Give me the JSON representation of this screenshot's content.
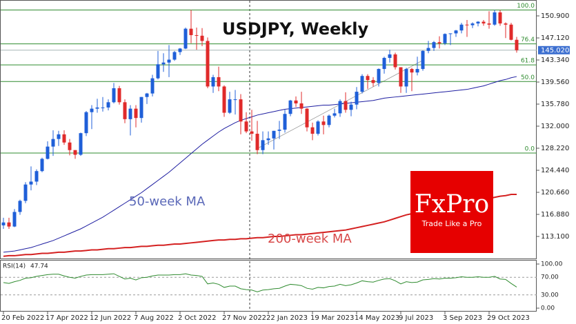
{
  "chart_data": [
    {
      "type": "candlestick",
      "title": "USDJPY, Weekly",
      "categories": [
        "20 Feb 2022",
        null,
        null,
        null,
        null,
        null,
        null,
        null,
        "17 Apr 2022",
        null,
        null,
        null,
        null,
        null,
        null,
        null,
        "12 Jun 2022",
        null,
        null,
        null,
        null,
        null,
        null,
        null,
        "7 Aug 2022",
        null,
        null,
        null,
        null,
        null,
        null,
        null,
        "2 Oct 2022",
        null,
        null,
        null,
        null,
        null,
        null,
        null,
        "27 Nov 2022",
        null,
        null,
        null,
        null,
        null,
        null,
        null,
        "22 Jan 2023",
        null,
        null,
        null,
        null,
        null,
        null,
        null,
        "19 Mar 2023",
        null,
        null,
        null,
        null,
        null,
        null,
        null,
        "14 May 2023",
        null,
        null,
        null,
        null,
        null,
        null,
        null,
        "9 Jul 2023",
        null,
        null,
        null,
        null,
        null,
        null,
        null,
        "3 Sep 2023",
        null,
        null,
        null,
        null,
        null,
        null,
        null,
        "29 Oct 2023",
        null,
        null,
        null,
        null,
        null
      ],
      "open": [
        115.0,
        115.5,
        114.8,
        117.3,
        119.2,
        122.0,
        122.5,
        124.3,
        126.4,
        128.5,
        129.8,
        130.6,
        129.2,
        127.9,
        127.1,
        130.8,
        134.4,
        135.0,
        135.2,
        135.2,
        136.1,
        138.5,
        136.1,
        133.2,
        135.0,
        133.4,
        137.0,
        137.6,
        140.2,
        142.6,
        142.9,
        143.4,
        144.7,
        145.3,
        148.7,
        147.6,
        147.5,
        146.6,
        138.8,
        140.4,
        138.8,
        134.3,
        136.6,
        136.6,
        132.8,
        131.1,
        130.7,
        127.9,
        129.6,
        129.9,
        131.2,
        131.4,
        134.1,
        136.4,
        135.9,
        135.0,
        131.8,
        130.7,
        132.8,
        132.2,
        133.8,
        134.2,
        136.3,
        134.8,
        135.7,
        137.9,
        140.6,
        139.9,
        139.4,
        141.8,
        143.7,
        144.3,
        142.1,
        138.8,
        141.8,
        141.2,
        141.8,
        144.9,
        145.4,
        146.4,
        146.2,
        147.8,
        147.9,
        148.4,
        149.4,
        149.3,
        149.6,
        149.9,
        149.6,
        149.4,
        151.5,
        149.6,
        149.4,
        146.8
      ],
      "high": [
        116.3,
        116.3,
        117.8,
        119.4,
        122.4,
        125.1,
        124.6,
        126.6,
        129.4,
        131.3,
        131.2,
        131.3,
        129.8,
        127.9,
        130.9,
        134.6,
        135.6,
        136.7,
        137.0,
        136.6,
        139.4,
        138.9,
        136.6,
        135.6,
        135.6,
        137.0,
        137.7,
        140.8,
        144.9,
        144.5,
        145.9,
        144.9,
        145.4,
        148.9,
        151.9,
        148.9,
        148.8,
        147.2,
        140.8,
        142.2,
        139.0,
        137.9,
        138.2,
        137.5,
        134.4,
        134.8,
        132.9,
        131.1,
        131.1,
        131.2,
        132.9,
        134.8,
        136.5,
        137.1,
        137.9,
        135.1,
        132.6,
        133.0,
        133.8,
        134.0,
        135.0,
        136.6,
        137.8,
        136.2,
        138.7,
        140.9,
        140.9,
        140.4,
        141.9,
        143.9,
        145.1,
        144.6,
        142.1,
        142.0,
        142.0,
        143.9,
        145.0,
        146.6,
        146.6,
        147.4,
        147.9,
        147.9,
        148.5,
        149.7,
        150.2,
        149.8,
        150.0,
        150.2,
        151.7,
        151.9,
        151.9,
        149.8,
        149.7,
        147.3
      ],
      "low": [
        114.4,
        114.4,
        114.7,
        116.8,
        118.8,
        121.0,
        121.9,
        124.1,
        126.3,
        126.9,
        128.6,
        128.8,
        127.0,
        126.4,
        126.9,
        130.3,
        131.5,
        134.3,
        134.5,
        134.7,
        135.9,
        135.7,
        132.5,
        130.4,
        131.8,
        132.6,
        135.8,
        137.1,
        140.0,
        141.3,
        140.4,
        143.2,
        144.2,
        145.2,
        146.2,
        145.1,
        145.7,
        138.5,
        137.7,
        138.0,
        133.6,
        134.1,
        134.0,
        130.6,
        130.8,
        129.5,
        127.2,
        127.2,
        128.8,
        128.0,
        129.8,
        130.9,
        133.7,
        135.3,
        134.1,
        131.1,
        129.6,
        130.4,
        130.6,
        131.8,
        133.5,
        133.6,
        134.3,
        133.7,
        134.9,
        137.6,
        138.4,
        138.8,
        138.8,
        141.0,
        142.9,
        141.7,
        137.7,
        137.7,
        138.0,
        140.7,
        141.5,
        144.5,
        144.9,
        145.3,
        145.9,
        145.9,
        147.3,
        147.9,
        147.3,
        148.8,
        149.1,
        149.2,
        148.7,
        149.2,
        149.2,
        147.1,
        146.7,
        144.6
      ],
      "close": [
        115.5,
        114.8,
        117.3,
        119.2,
        122.0,
        122.5,
        124.3,
        126.4,
        128.5,
        129.8,
        130.6,
        129.2,
        127.9,
        127.1,
        130.8,
        134.4,
        135.0,
        135.2,
        135.2,
        136.1,
        138.5,
        136.1,
        133.2,
        135.0,
        133.4,
        137.0,
        137.6,
        140.2,
        142.6,
        142.9,
        143.4,
        144.7,
        145.3,
        148.7,
        147.6,
        147.5,
        146.6,
        138.8,
        140.4,
        138.8,
        134.3,
        136.6,
        136.6,
        132.8,
        131.1,
        130.7,
        127.9,
        129.6,
        129.9,
        131.2,
        131.4,
        134.1,
        136.4,
        135.9,
        135.0,
        131.8,
        130.7,
        132.8,
        132.2,
        133.8,
        134.2,
        136.3,
        134.8,
        135.7,
        137.9,
        140.6,
        139.9,
        139.4,
        141.8,
        143.7,
        144.3,
        142.1,
        138.8,
        141.8,
        141.2,
        141.8,
        144.9,
        145.4,
        146.4,
        146.2,
        147.8,
        147.9,
        148.4,
        149.4,
        149.3,
        149.6,
        149.9,
        149.6,
        149.4,
        151.5,
        149.6,
        149.4,
        146.8,
        145.02
      ],
      "up_color": "#1f5fd8",
      "down_color": "#e02a2a",
      "series": [
        {
          "name": "50-week MA",
          "color": "#1c1ca0",
          "text_color": "#5a68b8",
          "values": [
            110.4,
            110.5,
            110.6,
            110.8,
            111.0,
            111.2,
            111.5,
            111.8,
            112.1,
            112.4,
            112.8,
            113.2,
            113.6,
            114.0,
            114.4,
            114.9,
            115.4,
            115.9,
            116.4,
            117.0,
            117.6,
            118.2,
            118.8,
            119.4,
            120.0,
            120.6,
            121.3,
            122.0,
            122.7,
            123.4,
            124.1,
            124.9,
            125.7,
            126.5,
            127.3,
            128.1,
            128.9,
            129.6,
            130.3,
            131.0,
            131.6,
            132.1,
            132.6,
            133.0,
            133.3,
            133.6,
            133.9,
            134.1,
            134.3,
            134.5,
            134.7,
            134.9,
            135.0,
            135.1,
            135.2,
            135.3,
            135.4,
            135.5,
            135.6,
            135.6,
            135.7,
            135.8,
            135.9,
            136.0,
            136.1,
            136.2,
            136.3,
            136.4,
            136.6,
            136.8,
            136.9,
            137.0,
            137.1,
            137.2,
            137.3,
            137.4,
            137.5,
            137.6,
            137.7,
            137.8,
            137.9,
            138.0,
            138.1,
            138.2,
            138.3,
            138.5,
            138.7,
            138.9,
            139.2,
            139.5,
            139.8,
            140.0,
            140.3,
            140.5
          ]
        },
        {
          "name": "200-week MA",
          "color": "#d42020",
          "text_color": "#d84848",
          "values": [
            109.7,
            109.8,
            109.8,
            109.9,
            110.0,
            110.0,
            110.1,
            110.2,
            110.2,
            110.3,
            110.4,
            110.4,
            110.5,
            110.6,
            110.6,
            110.7,
            110.8,
            110.8,
            110.9,
            111.0,
            111.0,
            111.1,
            111.2,
            111.2,
            111.3,
            111.4,
            111.4,
            111.5,
            111.6,
            111.6,
            111.7,
            111.8,
            111.8,
            111.9,
            112.0,
            112.1,
            112.2,
            112.3,
            112.4,
            112.5,
            112.5,
            112.6,
            112.6,
            112.7,
            112.7,
            112.8,
            112.9,
            112.9,
            113.0,
            113.1,
            113.1,
            113.2,
            113.3,
            113.4,
            113.4,
            113.5,
            113.6,
            113.7,
            113.8,
            113.9,
            114.0,
            114.1,
            114.2,
            114.4,
            114.6,
            114.8,
            115.0,
            115.2,
            115.4,
            115.6,
            115.9,
            116.2,
            116.5,
            116.8,
            117.0,
            117.2,
            117.4,
            117.6,
            117.8,
            118.0,
            118.2,
            118.4,
            118.5,
            118.7,
            118.8,
            119.0,
            119.2,
            119.4,
            119.6,
            119.8,
            120.0,
            120.1,
            120.3,
            120.3
          ]
        }
      ],
      "fib_levels": [
        {
          "value": 151.9,
          "label": "100.0"
        },
        {
          "value": 146.1,
          "label": "76.4"
        },
        {
          "value": 142.5,
          "label": "61.8"
        },
        {
          "value": 139.65,
          "label": "50.0"
        },
        {
          "value": 127.4,
          "label": "0.0"
        }
      ],
      "fib_color": "#2e8b2e",
      "last_price": {
        "value": 145.02,
        "label": "145.020"
      },
      "ylim": [
        109.32,
        153.62
      ],
      "yticks": [
        {
          "value": 150.9,
          "label": "150.900"
        },
        {
          "value": 147.12,
          "label": "147.120"
        },
        {
          "value": 143.34,
          "label": "143.340"
        },
        {
          "value": 139.56,
          "label": "139.560"
        },
        {
          "value": 135.78,
          "label": "135.780"
        },
        {
          "value": 132.0,
          "label": "132.000"
        },
        {
          "value": 128.22,
          "label": "128.220"
        },
        {
          "value": 124.44,
          "label": "124.440"
        },
        {
          "value": 120.66,
          "label": "120.660"
        },
        {
          "value": 116.88,
          "label": "116.880"
        },
        {
          "value": 113.1,
          "label": "113.100"
        }
      ]
    },
    {
      "type": "line",
      "title": "RSI(14)",
      "color": "#2e8b2e",
      "values": [
        58,
        56,
        60,
        63,
        68,
        69,
        72,
        74,
        76,
        77,
        77,
        73,
        70,
        68,
        72,
        75,
        76,
        76,
        76,
        77,
        78,
        72,
        66,
        68,
        64,
        69,
        70,
        73,
        75,
        75,
        75,
        76,
        76,
        78,
        75,
        74,
        72,
        55,
        57,
        54,
        47,
        50,
        50,
        44,
        42,
        41,
        37,
        41,
        42,
        44,
        45,
        50,
        54,
        53,
        51,
        45,
        43,
        47,
        46,
        49,
        50,
        54,
        51,
        53,
        57,
        62,
        60,
        59,
        63,
        66,
        67,
        62,
        55,
        60,
        58,
        59,
        64,
        65,
        67,
        66,
        68,
        68,
        69,
        71,
        70,
        70,
        71,
        70,
        70,
        72,
        66,
        65,
        56,
        47.74
      ],
      "ylim": [
        0,
        100
      ],
      "yticks": [
        {
          "value": 100,
          "label": "100.00"
        },
        {
          "value": 70,
          "label": "70.00"
        },
        {
          "value": 30,
          "label": "30.00"
        },
        {
          "value": 0,
          "label": "0.00"
        }
      ]
    }
  ],
  "logo": {
    "name": "FxPro",
    "tagline": "Trade Like a Pro"
  }
}
